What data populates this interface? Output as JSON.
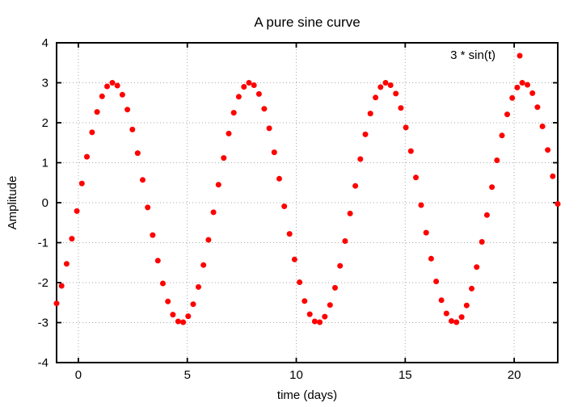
{
  "figure": {
    "title": "A pure sine curve",
    "x_axis": {
      "label": "time (days)"
    },
    "y_axis": {
      "label": "Amplitude"
    },
    "legend": {
      "label": "3 * sin(t)",
      "marker": "filled-circle",
      "position": "top-right-inside"
    },
    "colors": {
      "points": "#ff0000",
      "border": "#000000",
      "grid": "#a8a8a8",
      "background": "#ffffff",
      "text": "#000000"
    }
  },
  "chart_data": {
    "type": "scatter",
    "title": "A pure sine curve",
    "xlabel": "time (days)",
    "ylabel": "Amplitude",
    "xlim": [
      -1,
      22
    ],
    "ylim": [
      -4,
      4
    ],
    "xticks": [
      0,
      5,
      10,
      15,
      20
    ],
    "yticks": [
      -4,
      -3,
      -2,
      -1,
      0,
      1,
      2,
      3,
      4
    ],
    "grid": true,
    "grid_style": "dotted",
    "legend_position": "top-right-inside",
    "series": [
      {
        "name": "3 * sin(t)",
        "expression": "3*sin(t)",
        "samples": 100,
        "marker": "filled-circle",
        "color": "#ff0000",
        "points": [
          [
            -1.0,
            -2.52
          ],
          [
            -0.77,
            -2.08
          ],
          [
            -0.54,
            -1.53
          ],
          [
            -0.3,
            -0.9
          ],
          [
            -0.07,
            -0.21
          ],
          [
            0.16,
            0.48
          ],
          [
            0.39,
            1.15
          ],
          [
            0.63,
            1.76
          ],
          [
            0.86,
            2.27
          ],
          [
            1.09,
            2.66
          ],
          [
            1.32,
            2.91
          ],
          [
            1.56,
            3.0
          ],
          [
            1.79,
            2.93
          ],
          [
            2.02,
            2.7
          ],
          [
            2.25,
            2.33
          ],
          [
            2.48,
            1.83
          ],
          [
            2.72,
            1.24
          ],
          [
            2.95,
            0.57
          ],
          [
            3.18,
            -0.12
          ],
          [
            3.41,
            -0.81
          ],
          [
            3.65,
            -1.45
          ],
          [
            3.88,
            -2.02
          ],
          [
            4.11,
            -2.47
          ],
          [
            4.34,
            -2.8
          ],
          [
            4.58,
            -2.97
          ],
          [
            4.81,
            -2.99
          ],
          [
            5.04,
            -2.84
          ],
          [
            5.27,
            -2.54
          ],
          [
            5.51,
            -2.11
          ],
          [
            5.74,
            -1.56
          ],
          [
            5.97,
            -0.93
          ],
          [
            6.2,
            -0.24
          ],
          [
            6.43,
            0.45
          ],
          [
            6.67,
            1.12
          ],
          [
            6.9,
            1.73
          ],
          [
            7.13,
            2.25
          ],
          [
            7.36,
            2.65
          ],
          [
            7.6,
            2.9
          ],
          [
            7.83,
            3.0
          ],
          [
            8.06,
            2.94
          ],
          [
            8.29,
            2.72
          ],
          [
            8.53,
            2.35
          ],
          [
            8.76,
            1.86
          ],
          [
            8.99,
            1.26
          ],
          [
            9.22,
            0.6
          ],
          [
            9.45,
            -0.09
          ],
          [
            9.69,
            -0.78
          ],
          [
            9.92,
            -1.42
          ],
          [
            10.15,
            -1.99
          ],
          [
            10.38,
            -2.46
          ],
          [
            10.62,
            -2.79
          ],
          [
            10.85,
            -2.97
          ],
          [
            11.08,
            -2.99
          ],
          [
            11.31,
            -2.85
          ],
          [
            11.55,
            -2.56
          ],
          [
            11.78,
            -2.13
          ],
          [
            12.01,
            -1.58
          ],
          [
            12.24,
            -0.96
          ],
          [
            12.47,
            -0.27
          ],
          [
            12.71,
            0.42
          ],
          [
            12.94,
            1.09
          ],
          [
            13.17,
            1.71
          ],
          [
            13.4,
            2.23
          ],
          [
            13.64,
            2.63
          ],
          [
            13.87,
            2.89
          ],
          [
            14.1,
            3.0
          ],
          [
            14.33,
            2.94
          ],
          [
            14.57,
            2.73
          ],
          [
            14.8,
            2.37
          ],
          [
            15.03,
            1.88
          ],
          [
            15.26,
            1.29
          ],
          [
            15.49,
            0.63
          ],
          [
            15.73,
            -0.06
          ],
          [
            15.96,
            -0.75
          ],
          [
            16.19,
            -1.4
          ],
          [
            16.42,
            -1.97
          ],
          [
            16.66,
            -2.44
          ],
          [
            16.89,
            -2.77
          ],
          [
            17.12,
            -2.96
          ],
          [
            17.35,
            -2.99
          ],
          [
            17.59,
            -2.86
          ],
          [
            17.82,
            -2.57
          ],
          [
            18.05,
            -2.15
          ],
          [
            18.28,
            -1.61
          ],
          [
            18.52,
            -0.98
          ],
          [
            18.75,
            -0.31
          ],
          [
            18.98,
            0.39
          ],
          [
            19.21,
            1.06
          ],
          [
            19.44,
            1.68
          ],
          [
            19.68,
            2.21
          ],
          [
            19.91,
            2.62
          ],
          [
            20.14,
            2.88
          ],
          [
            20.37,
            3.0
          ],
          [
            20.61,
            2.95
          ],
          [
            20.84,
            2.74
          ],
          [
            21.07,
            2.39
          ],
          [
            21.3,
            1.91
          ],
          [
            21.54,
            1.32
          ],
          [
            21.77,
            0.66
          ],
          [
            22.0,
            -0.03
          ]
        ]
      }
    ]
  }
}
